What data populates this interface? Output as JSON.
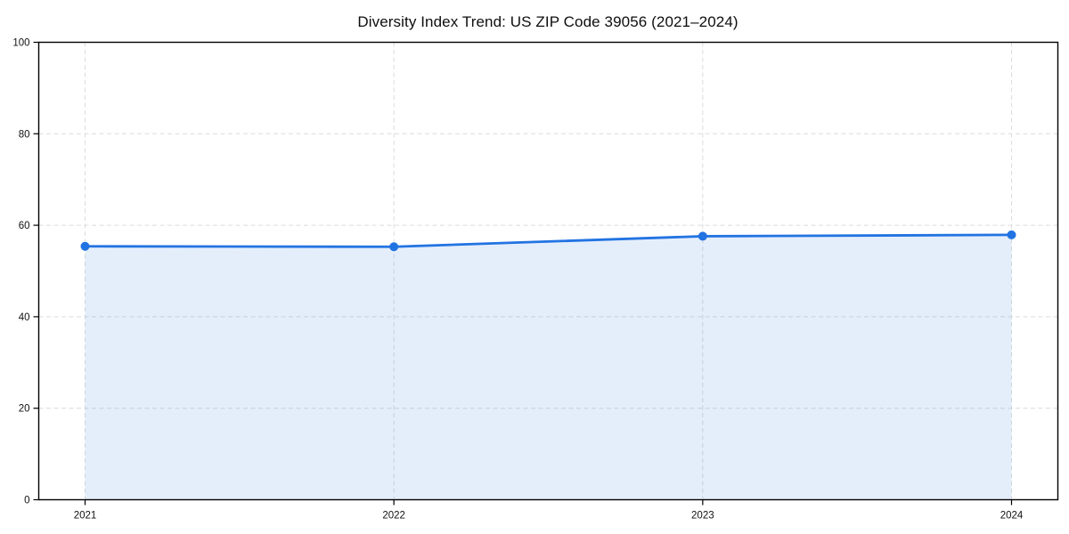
{
  "chart_data": {
    "type": "area",
    "title": "Diversity Index Trend: US ZIP Code 39056 (2021–2024)",
    "series_name": "Diversity Index",
    "x": [
      "2021",
      "2022",
      "2023",
      "2024"
    ],
    "values": [
      55.4,
      55.3,
      57.6,
      57.9
    ],
    "xlabel": "",
    "ylabel": "",
    "ylim": [
      0,
      100
    ],
    "yticks": [
      0,
      20,
      40,
      60,
      80,
      100
    ],
    "grid": "dashed",
    "legend_position": "none",
    "colors": {
      "line": "#2273e2",
      "marker": "#2273e2",
      "fill": "#2273e2",
      "fill_opacity": "0.12",
      "grid": "#dcdcdc",
      "axis": "#000000",
      "tick_text": "#121212",
      "title_text": "#0e0e0e",
      "background": "#ffffff"
    }
  }
}
